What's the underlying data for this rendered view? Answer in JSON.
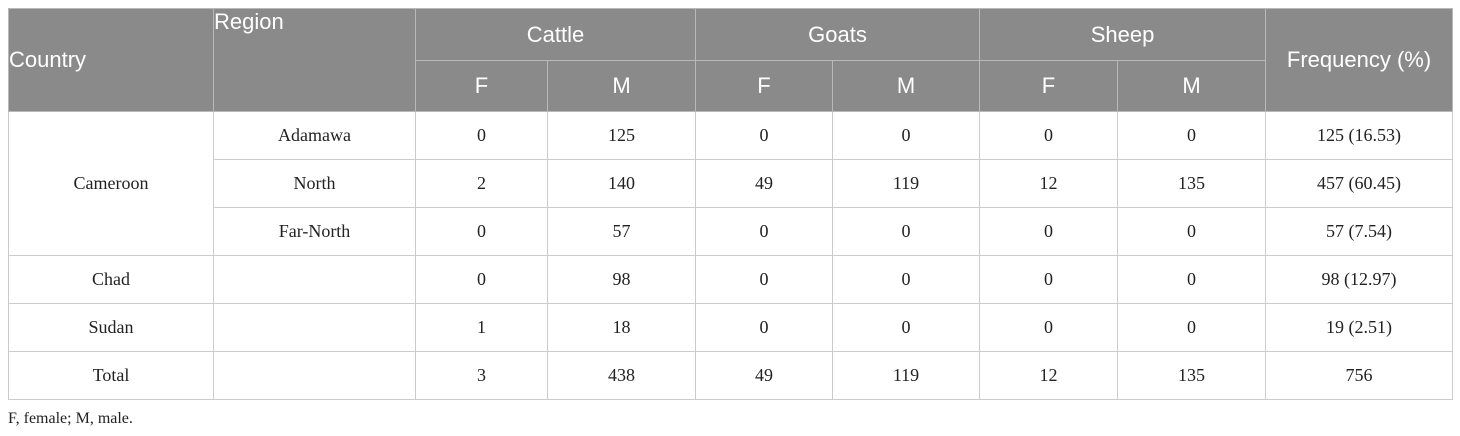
{
  "header": {
    "country": "Country",
    "region": "Region",
    "cattle": "Cattle",
    "goats": "Goats",
    "sheep": "Sheep",
    "frequency": "Frequency (%)",
    "sub": [
      "F",
      "M",
      "F",
      "M",
      "F",
      "M"
    ]
  },
  "rows": [
    {
      "country": "Cameroon",
      "region": "Adamawa",
      "vals": [
        "0",
        "125",
        "0",
        "0",
        "0",
        "0"
      ],
      "freq": "125 (16.53)"
    },
    {
      "country": "",
      "region": "North",
      "vals": [
        "2",
        "140",
        "49",
        "119",
        "12",
        "135"
      ],
      "freq": "457 (60.45)"
    },
    {
      "country": "",
      "region": "Far-North",
      "vals": [
        "0",
        "57",
        "0",
        "0",
        "0",
        "0"
      ],
      "freq": "57 (7.54)"
    },
    {
      "country": "Chad",
      "region": "",
      "vals": [
        "0",
        "98",
        "0",
        "0",
        "0",
        "0"
      ],
      "freq": "98 (12.97)"
    },
    {
      "country": "Sudan",
      "region": "",
      "vals": [
        "1",
        "18",
        "0",
        "0",
        "0",
        "0"
      ],
      "freq": "19 (2.51)"
    },
    {
      "country": "Total",
      "region": "",
      "vals": [
        "3",
        "438",
        "49",
        "119",
        "12",
        "135"
      ],
      "freq": "756"
    }
  ],
  "footnote": "F, female; M, male."
}
